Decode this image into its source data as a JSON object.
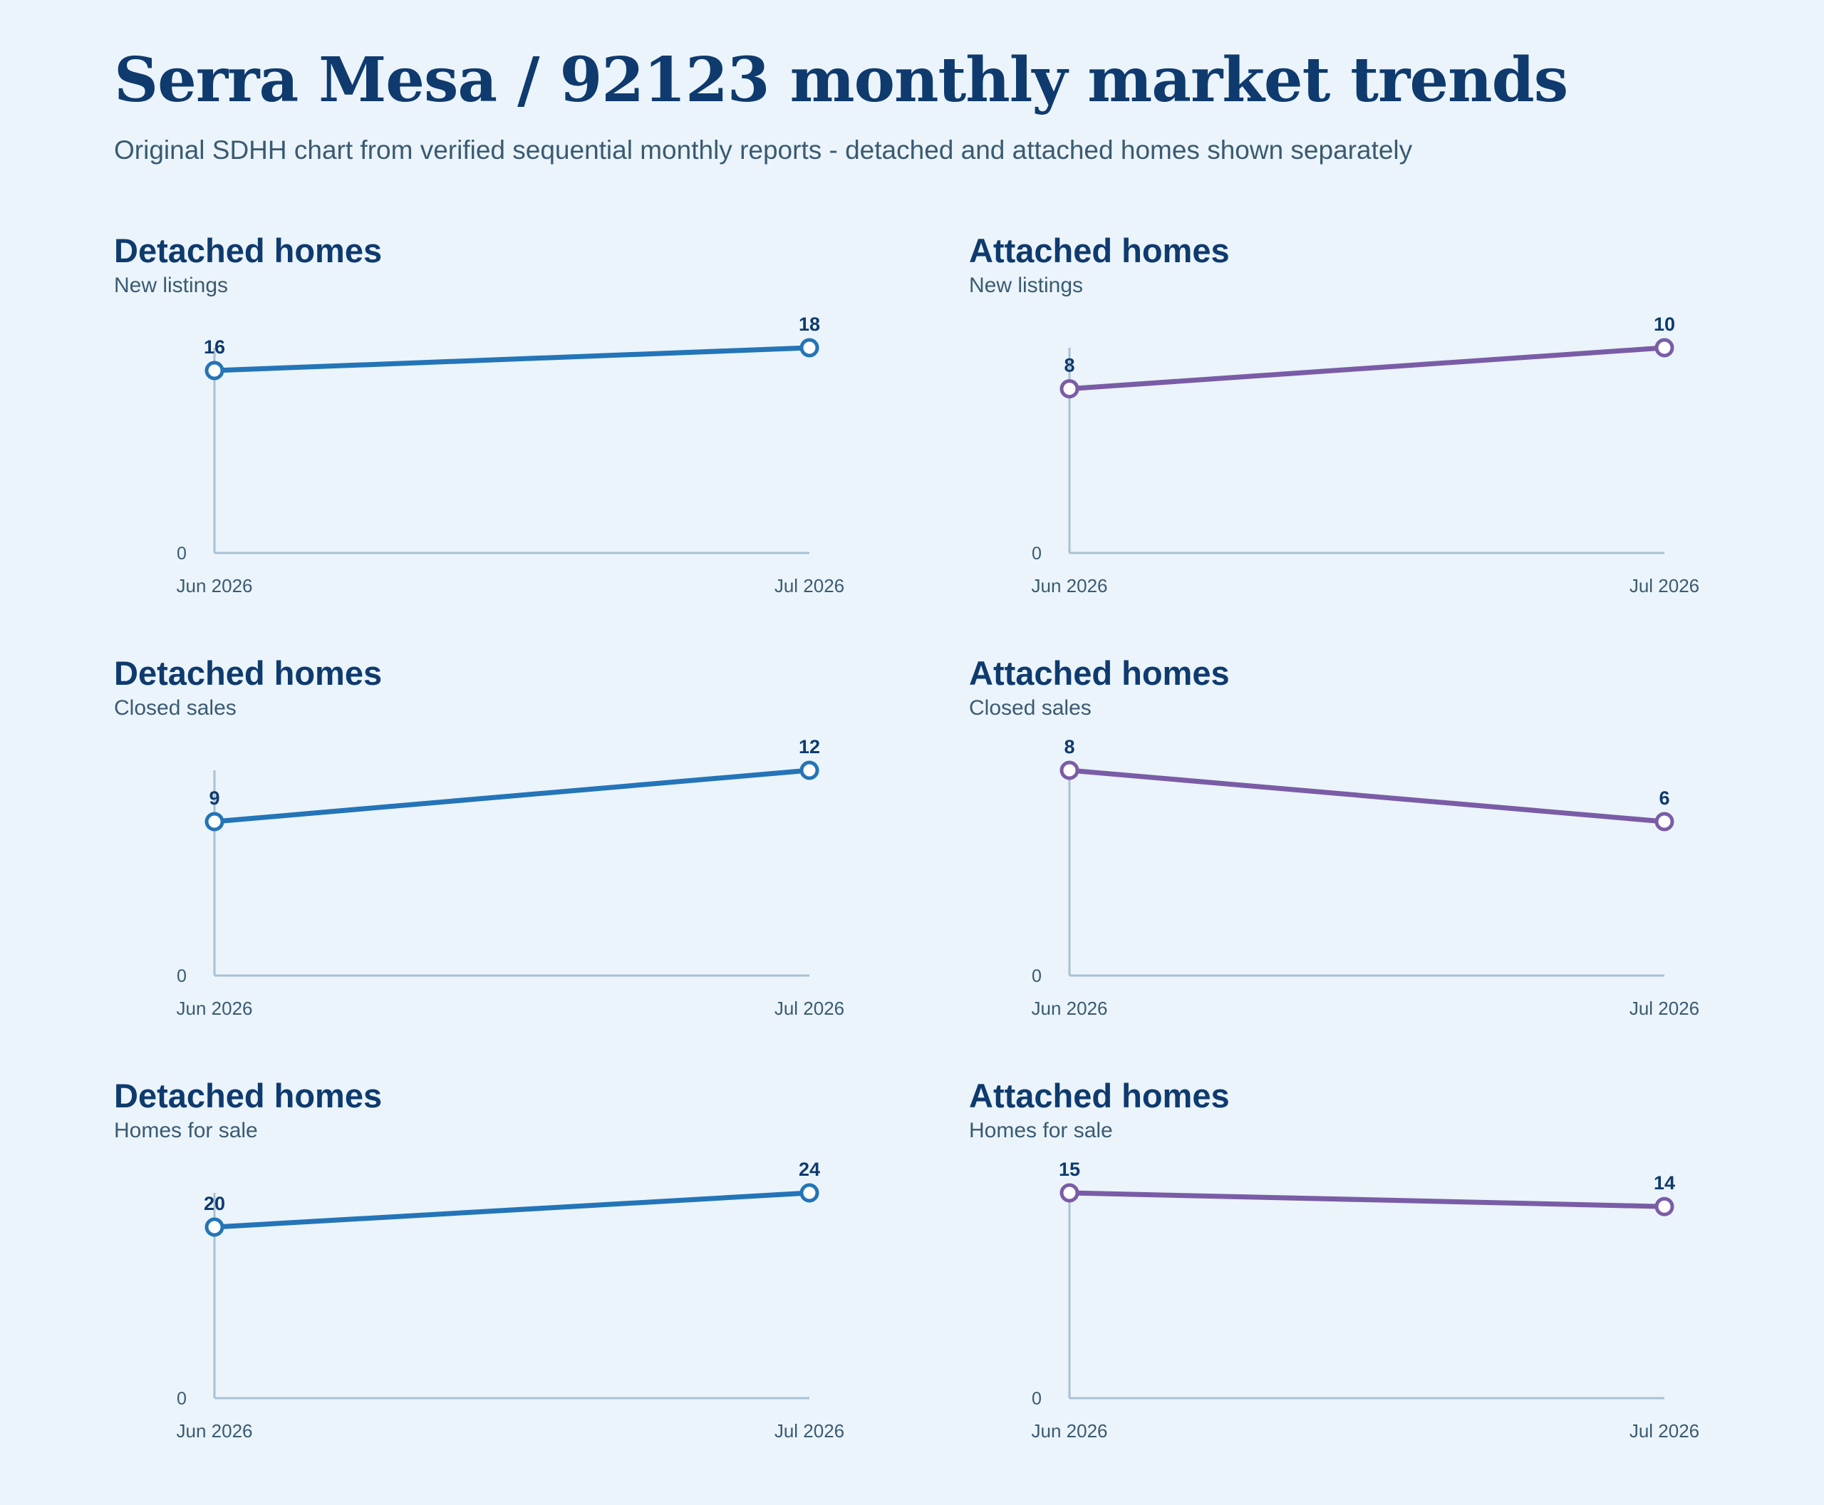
{
  "title": "Serra Mesa / 92123 monthly market trends",
  "subtitle": "Original SDHH chart from verified sequential monthly reports - detached and attached homes shown separately",
  "colors": {
    "detached": "#2474b8",
    "attached": "#7a5ca6",
    "axis": "#a9c1d3",
    "heading": "#0f3a6e",
    "text": "#3b5a72"
  },
  "chart_data": [
    {
      "type": "line",
      "title": "Detached homes",
      "subtitle": "New listings",
      "categories": [
        "Jun 2026",
        "Jul 2026"
      ],
      "series": [
        {
          "values": [
            16,
            18
          ]
        }
      ],
      "ylim": [
        0,
        18
      ],
      "y_tick_labels": [
        "0"
      ],
      "color_key": "detached",
      "grid": false
    },
    {
      "type": "line",
      "title": "Attached homes",
      "subtitle": "New listings",
      "categories": [
        "Jun 2026",
        "Jul 2026"
      ],
      "series": [
        {
          "values": [
            8,
            10
          ]
        }
      ],
      "ylim": [
        0,
        10
      ],
      "y_tick_labels": [
        "0"
      ],
      "color_key": "attached",
      "grid": false
    },
    {
      "type": "line",
      "title": "Detached homes",
      "subtitle": "Closed sales",
      "categories": [
        "Jun 2026",
        "Jul 2026"
      ],
      "series": [
        {
          "values": [
            9,
            12
          ]
        }
      ],
      "ylim": [
        0,
        12
      ],
      "y_tick_labels": [
        "0"
      ],
      "color_key": "detached",
      "grid": false
    },
    {
      "type": "line",
      "title": "Attached homes",
      "subtitle": "Closed sales",
      "categories": [
        "Jun 2026",
        "Jul 2026"
      ],
      "series": [
        {
          "values": [
            8,
            6
          ]
        }
      ],
      "ylim": [
        0,
        8
      ],
      "y_tick_labels": [
        "0"
      ],
      "color_key": "attached",
      "grid": false
    },
    {
      "type": "line",
      "title": "Detached homes",
      "subtitle": "Homes for sale",
      "categories": [
        "Jun 2026",
        "Jul 2026"
      ],
      "series": [
        {
          "values": [
            20,
            24
          ]
        }
      ],
      "ylim": [
        0,
        24
      ],
      "y_tick_labels": [
        "0"
      ],
      "color_key": "detached",
      "grid": false
    },
    {
      "type": "line",
      "title": "Attached homes",
      "subtitle": "Homes for sale",
      "categories": [
        "Jun 2026",
        "Jul 2026"
      ],
      "series": [
        {
          "values": [
            15,
            14
          ]
        }
      ],
      "ylim": [
        0,
        15
      ],
      "y_tick_labels": [
        "0"
      ],
      "color_key": "attached",
      "grid": false
    }
  ]
}
